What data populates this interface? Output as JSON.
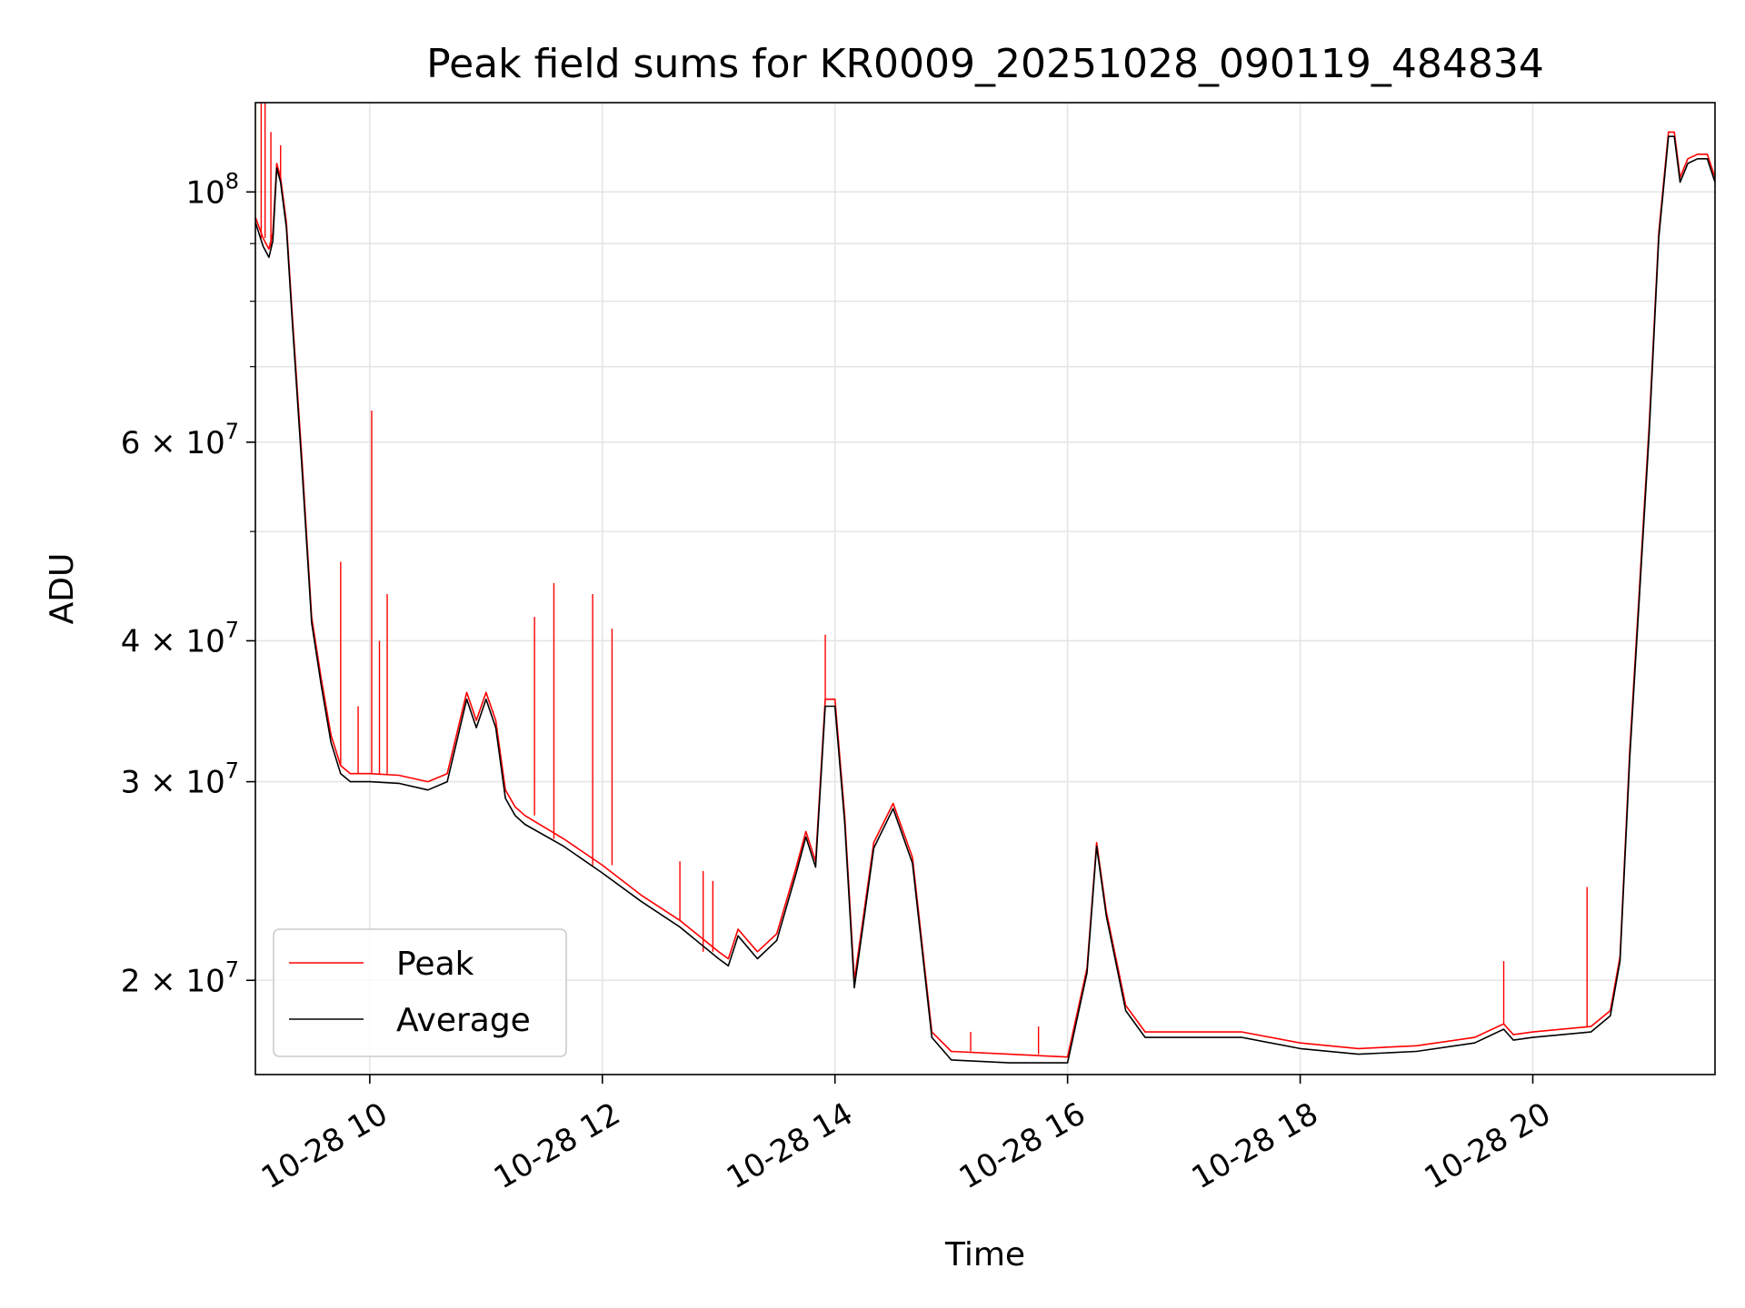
{
  "chart_data": {
    "type": "line",
    "title": "Peak field sums for KR0009_20251028_090119_484834",
    "xlabel": "Time",
    "ylabel": "ADU",
    "yscale": "log",
    "xlim": [
      "2025-10-28 09:01",
      "2025-10-28 21:34"
    ],
    "ylim": [
      16500000,
      120000000
    ],
    "grid": true,
    "legend_position": "lower-left",
    "x_ticks": [
      {
        "value": "2025-10-28 10:00",
        "label": "10-28 10"
      },
      {
        "value": "2025-10-28 12:00",
        "label": "10-28 12"
      },
      {
        "value": "2025-10-28 14:00",
        "label": "10-28 14"
      },
      {
        "value": "2025-10-28 16:00",
        "label": "10-28 16"
      },
      {
        "value": "2025-10-28 18:00",
        "label": "10-28 18"
      },
      {
        "value": "2025-10-28 20:00",
        "label": "10-28 20"
      }
    ],
    "y_ticks": [
      {
        "value": 20000000,
        "base": "2",
        "exp": "7"
      },
      {
        "value": 30000000,
        "base": "3",
        "exp": "7"
      },
      {
        "value": 40000000,
        "base": "4",
        "exp": "7"
      },
      {
        "value": 60000000,
        "base": "6",
        "exp": "7"
      },
      {
        "value": 100000000,
        "base": "10",
        "exp": "8"
      }
    ],
    "y_minor_ticks": [
      50000000,
      70000000,
      80000000,
      90000000
    ],
    "series": [
      {
        "name": "Peak",
        "color": "#ff0000",
        "x": [
          "2025-10-28 09:01",
          "2025-10-28 09:05",
          "2025-10-28 09:08",
          "2025-10-28 09:10",
          "2025-10-28 09:12",
          "2025-10-28 09:14",
          "2025-10-28 09:17",
          "2025-10-28 09:20",
          "2025-10-28 09:25",
          "2025-10-28 09:30",
          "2025-10-28 09:35",
          "2025-10-28 09:40",
          "2025-10-28 09:45",
          "2025-10-28 09:50",
          "2025-10-28 10:00",
          "2025-10-28 10:15",
          "2025-10-28 10:30",
          "2025-10-28 10:40",
          "2025-10-28 10:50",
          "2025-10-28 10:55",
          "2025-10-28 11:00",
          "2025-10-28 11:05",
          "2025-10-28 11:10",
          "2025-10-28 11:15",
          "2025-10-28 11:20",
          "2025-10-28 11:40",
          "2025-10-28 12:00",
          "2025-10-28 12:20",
          "2025-10-28 12:40",
          "2025-10-28 13:00",
          "2025-10-28 13:05",
          "2025-10-28 13:10",
          "2025-10-28 13:20",
          "2025-10-28 13:30",
          "2025-10-28 13:40",
          "2025-10-28 13:45",
          "2025-10-28 13:50",
          "2025-10-28 13:55",
          "2025-10-28 14:00",
          "2025-10-28 14:05",
          "2025-10-28 14:10",
          "2025-10-28 14:15",
          "2025-10-28 14:20",
          "2025-10-28 14:30",
          "2025-10-28 14:40",
          "2025-10-28 14:50",
          "2025-10-28 15:00",
          "2025-10-28 15:30",
          "2025-10-28 16:00",
          "2025-10-28 16:10",
          "2025-10-28 16:15",
          "2025-10-28 16:20",
          "2025-10-28 16:30",
          "2025-10-28 16:40",
          "2025-10-28 17:00",
          "2025-10-28 17:30",
          "2025-10-28 18:00",
          "2025-10-28 18:30",
          "2025-10-28 19:00",
          "2025-10-28 19:30",
          "2025-10-28 19:45",
          "2025-10-28 19:50",
          "2025-10-28 20:00",
          "2025-10-28 20:30",
          "2025-10-28 20:40",
          "2025-10-28 20:45",
          "2025-10-28 20:50",
          "2025-10-28 21:00",
          "2025-10-28 21:05",
          "2025-10-28 21:10",
          "2025-10-28 21:13",
          "2025-10-28 21:16",
          "2025-10-28 21:20",
          "2025-10-28 21:25",
          "2025-10-28 21:30",
          "2025-10-28 21:34"
        ],
        "values": [
          95000000,
          91000000,
          89000000,
          92000000,
          106000000,
          103000000,
          94000000,
          78000000,
          58000000,
          42000000,
          37000000,
          33000000,
          31000000,
          30500000,
          30500000,
          30400000,
          30000000,
          30500000,
          36000000,
          34000000,
          36000000,
          34000000,
          29500000,
          28500000,
          28000000,
          26700000,
          25300000,
          23800000,
          22600000,
          21200000,
          20900000,
          22200000,
          21200000,
          22000000,
          25200000,
          27100000,
          25500000,
          35500000,
          35500000,
          28000000,
          20000000,
          23000000,
          26500000,
          28700000,
          25700000,
          18000000,
          17300000,
          17200000,
          17100000,
          20500000,
          26500000,
          23000000,
          19000000,
          18000000,
          18000000,
          18000000,
          17600000,
          17400000,
          17500000,
          17800000,
          18300000,
          17900000,
          18000000,
          18200000,
          18800000,
          21000000,
          32000000,
          62000000,
          92000000,
          113000000,
          113000000,
          103000000,
          107000000,
          108000000,
          108000000,
          103000000
        ],
        "spikes": [
          [
            "2025-10-28 09:04",
            123000000
          ],
          [
            "2025-10-28 09:06",
            124000000
          ],
          [
            "2025-10-28 09:09",
            113000000
          ],
          [
            "2025-10-28 09:14",
            110000000
          ],
          [
            "2025-10-28 09:45",
            47000000
          ],
          [
            "2025-10-28 09:54",
            35000000
          ],
          [
            "2025-10-28 10:01",
            64000000
          ],
          [
            "2025-10-28 10:05",
            40000000
          ],
          [
            "2025-10-28 10:09",
            44000000
          ],
          [
            "2025-10-28 11:25",
            42000000
          ],
          [
            "2025-10-28 11:35",
            45000000
          ],
          [
            "2025-10-28 11:55",
            44000000
          ],
          [
            "2025-10-28 12:05",
            41000000
          ],
          [
            "2025-10-28 12:40",
            25500000
          ],
          [
            "2025-10-28 12:52",
            25000000
          ],
          [
            "2025-10-28 12:57",
            24500000
          ],
          [
            "2025-10-28 13:55",
            40500000
          ],
          [
            "2025-10-28 15:10",
            18000000
          ],
          [
            "2025-10-28 15:45",
            18200000
          ],
          [
            "2025-10-28 19:45",
            20800000
          ],
          [
            "2025-10-28 20:28",
            24200000
          ]
        ]
      },
      {
        "name": "Average",
        "color": "#000000",
        "x": [
          "2025-10-28 09:01",
          "2025-10-28 09:05",
          "2025-10-28 09:08",
          "2025-10-28 09:10",
          "2025-10-28 09:12",
          "2025-10-28 09:14",
          "2025-10-28 09:17",
          "2025-10-28 09:20",
          "2025-10-28 09:25",
          "2025-10-28 09:30",
          "2025-10-28 09:35",
          "2025-10-28 09:40",
          "2025-10-28 09:45",
          "2025-10-28 09:50",
          "2025-10-28 10:00",
          "2025-10-28 10:15",
          "2025-10-28 10:30",
          "2025-10-28 10:40",
          "2025-10-28 10:50",
          "2025-10-28 10:55",
          "2025-10-28 11:00",
          "2025-10-28 11:05",
          "2025-10-28 11:10",
          "2025-10-28 11:15",
          "2025-10-28 11:20",
          "2025-10-28 11:40",
          "2025-10-28 12:00",
          "2025-10-28 12:20",
          "2025-10-28 12:40",
          "2025-10-28 13:00",
          "2025-10-28 13:05",
          "2025-10-28 13:10",
          "2025-10-28 13:20",
          "2025-10-28 13:30",
          "2025-10-28 13:40",
          "2025-10-28 13:45",
          "2025-10-28 13:50",
          "2025-10-28 13:55",
          "2025-10-28 14:00",
          "2025-10-28 14:05",
          "2025-10-28 14:10",
          "2025-10-28 14:15",
          "2025-10-28 14:20",
          "2025-10-28 14:30",
          "2025-10-28 14:40",
          "2025-10-28 14:50",
          "2025-10-28 15:00",
          "2025-10-28 15:30",
          "2025-10-28 16:00",
          "2025-10-28 16:10",
          "2025-10-28 16:15",
          "2025-10-28 16:20",
          "2025-10-28 16:30",
          "2025-10-28 16:40",
          "2025-10-28 17:00",
          "2025-10-28 17:30",
          "2025-10-28 18:00",
          "2025-10-28 18:30",
          "2025-10-28 19:00",
          "2025-10-28 19:30",
          "2025-10-28 19:45",
          "2025-10-28 19:50",
          "2025-10-28 20:00",
          "2025-10-28 20:30",
          "2025-10-28 20:40",
          "2025-10-28 20:45",
          "2025-10-28 20:50",
          "2025-10-28 21:00",
          "2025-10-28 21:05",
          "2025-10-28 21:10",
          "2025-10-28 21:13",
          "2025-10-28 21:16",
          "2025-10-28 21:20",
          "2025-10-28 21:25",
          "2025-10-28 21:30",
          "2025-10-28 21:34"
        ],
        "values": [
          94000000,
          89500000,
          87500000,
          90500000,
          105000000,
          102000000,
          93000000,
          77000000,
          57000000,
          41500000,
          36500000,
          32500000,
          30500000,
          30000000,
          30000000,
          29900000,
          29500000,
          30000000,
          35500000,
          33500000,
          35500000,
          33500000,
          29000000,
          28000000,
          27500000,
          26300000,
          24900000,
          23500000,
          22300000,
          20900000,
          20600000,
          21900000,
          20900000,
          21700000,
          24900000,
          26800000,
          25200000,
          35000000,
          35000000,
          27600000,
          19700000,
          22700000,
          26200000,
          28400000,
          25400000,
          17800000,
          17000000,
          16900000,
          16900000,
          20300000,
          26300000,
          22800000,
          18800000,
          17800000,
          17800000,
          17800000,
          17400000,
          17200000,
          17300000,
          17600000,
          18100000,
          17700000,
          17800000,
          18000000,
          18600000,
          20800000,
          31500000,
          61000000,
          91000000,
          112000000,
          112000000,
          102000000,
          106000000,
          107000000,
          107000000,
          102000000
        ]
      }
    ]
  }
}
